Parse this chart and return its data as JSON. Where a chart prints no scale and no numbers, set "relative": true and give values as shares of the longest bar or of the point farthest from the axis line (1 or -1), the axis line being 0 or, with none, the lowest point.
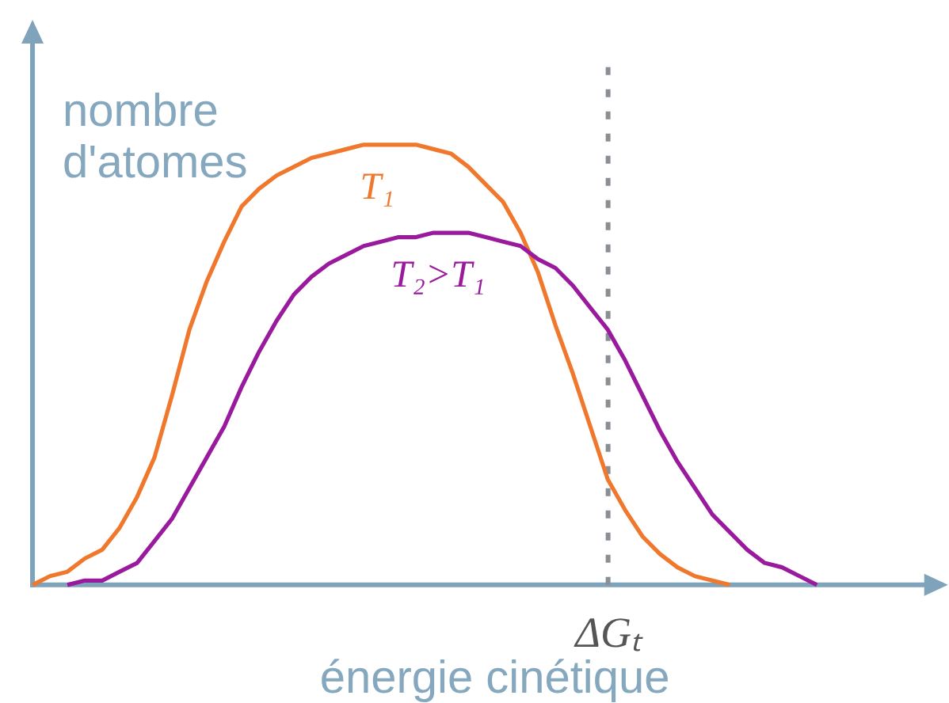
{
  "chart_data": {
    "type": "line",
    "relative": true,
    "xlabel": "énergie cinétique",
    "ylabel": "nombre d'atomes",
    "categories": [
      null,
      null,
      null,
      null,
      null,
      null,
      null,
      null,
      null,
      null,
      null,
      null,
      null,
      null,
      null,
      null,
      null,
      null,
      null,
      null,
      null,
      null,
      null,
      null,
      null,
      null,
      null,
      null,
      null,
      null,
      null,
      null,
      null,
      null,
      null,
      null,
      null,
      null,
      null,
      null,
      null,
      null,
      null,
      null,
      null,
      null,
      null,
      null,
      null,
      null,
      null,
      null,
      null
    ],
    "series": [
      {
        "name": "T₁",
        "color": "#f0782d",
        "values": [
          0,
          0.02,
          0.03,
          0.06,
          0.08,
          0.13,
          0.2,
          0.29,
          0.43,
          0.58,
          0.69,
          0.78,
          0.86,
          0.9,
          0.93,
          0.95,
          0.97,
          0.98,
          0.99,
          1,
          1,
          1,
          1,
          0.99,
          0.98,
          0.95,
          0.91,
          0.87,
          0.8,
          0.71,
          0.59,
          0.48,
          0.36,
          0.24,
          0.17,
          0.11,
          0.07,
          0.04,
          0.02,
          0.01,
          0,
          null,
          null,
          null,
          null,
          null,
          null,
          null,
          null,
          null,
          null,
          null,
          null
        ]
      },
      {
        "name": "T₂>T₁",
        "color": "#9a1a9e",
        "values": [
          null,
          null,
          0,
          0.01,
          0.01,
          0.03,
          0.05,
          0.1,
          0.15,
          0.22,
          0.29,
          0.36,
          0.45,
          0.53,
          0.6,
          0.66,
          0.7,
          0.73,
          0.75,
          0.77,
          0.78,
          0.79,
          0.79,
          0.8,
          0.8,
          0.8,
          0.79,
          0.78,
          0.77,
          0.74,
          0.72,
          0.68,
          0.63,
          0.58,
          0.51,
          0.43,
          0.35,
          0.28,
          0.22,
          0.16,
          0.12,
          0.08,
          0.05,
          0.04,
          0.02,
          0,
          null,
          null,
          null,
          null,
          null,
          null,
          null
        ]
      }
    ],
    "annotations": [
      "ΔGₜ"
    ]
  }
}
